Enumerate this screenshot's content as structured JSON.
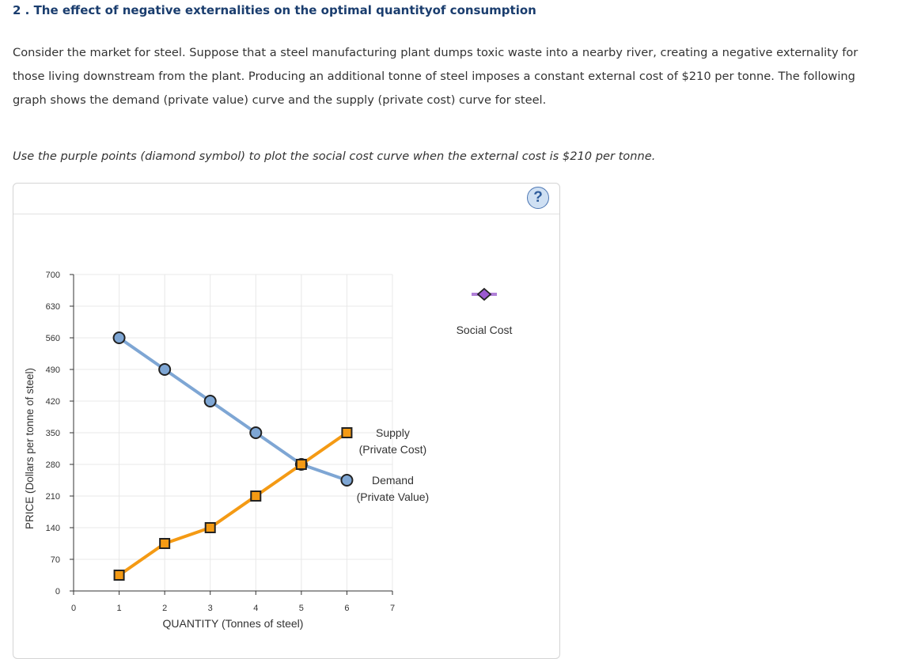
{
  "question": {
    "title": "2 . The effect of negative externalities on the optimal quantityof consumption",
    "intro": "Consider the market for steel. Suppose that a steel manufacturing plant dumps toxic waste into a nearby river, creating a negative externality for those living downstream from the plant. Producing an additional tonne of steel imposes a constant external cost of $210 per tonne. The following graph shows the demand (private value) curve and the supply (private cost) curve for steel.",
    "instruction": "Use the purple points (diamond symbol) to plot the social cost curve when the external cost is $210 per tonne."
  },
  "help_button": {
    "label": "?"
  },
  "colors": {
    "demand": "#7ea6d4",
    "supply": "#f49a14",
    "social_cost": "#9b59d0",
    "social_cost_line": "#b07fd8",
    "grid": "#e8e8e8",
    "axis": "#333333"
  },
  "chart_data": {
    "type": "line",
    "xlabel": "QUANTITY (Tonnes of steel)",
    "ylabel": "PRICE (Dollars per tonne of steel)",
    "xlim": [
      0,
      7
    ],
    "ylim": [
      0,
      700
    ],
    "x_ticks": [
      0,
      1,
      2,
      3,
      4,
      5,
      6,
      7
    ],
    "y_ticks": [
      0,
      70,
      140,
      210,
      280,
      350,
      420,
      490,
      560,
      630,
      700
    ],
    "grid": true,
    "series": [
      {
        "name": "Demand",
        "label_lines": [
          "Demand",
          "(Private Value)"
        ],
        "marker": "circle",
        "x": [
          1,
          2,
          3,
          4,
          5,
          6
        ],
        "y": [
          560,
          490,
          420,
          350,
          280,
          245
        ]
      },
      {
        "name": "Supply",
        "label_lines": [
          "Supply",
          "(Private Cost)"
        ],
        "marker": "square",
        "x": [
          1,
          2,
          3,
          4,
          5,
          6
        ],
        "y": [
          35,
          105,
          140,
          210,
          280,
          350
        ]
      }
    ],
    "legend": {
      "position": "right",
      "items": [
        {
          "name": "Social Cost",
          "marker": "diamond"
        }
      ]
    }
  }
}
